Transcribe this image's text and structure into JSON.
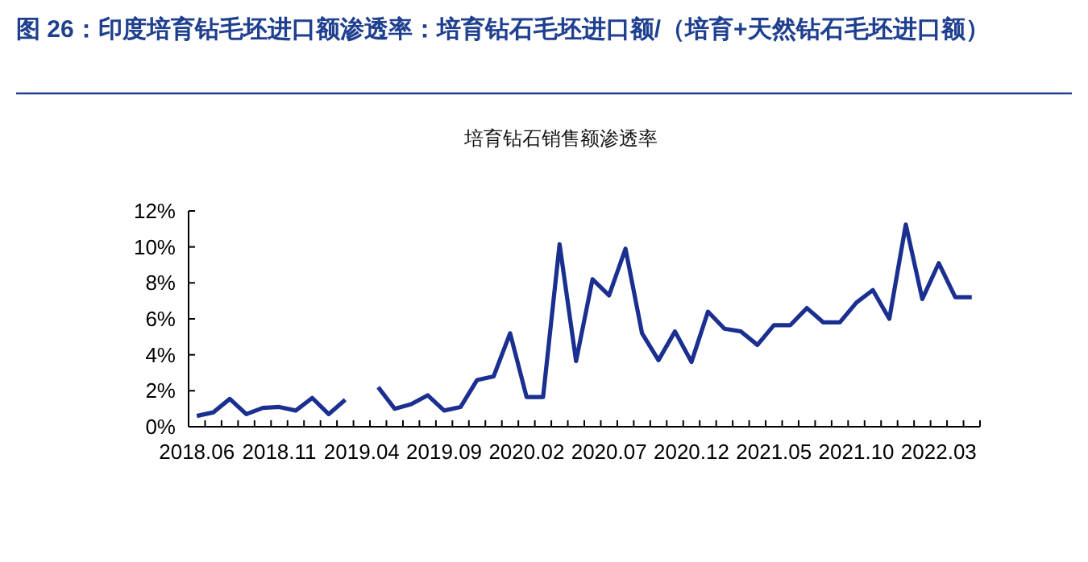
{
  "chart_data": {
    "type": "line",
    "title": "图 26：印度培育钻毛坯进口额渗透率：培育钻石毛坯进口额/（培育+天然钻石毛坯进口额）",
    "subtitle": "培育钻石销售额渗透率",
    "categories": [
      "2018.06",
      null,
      null,
      null,
      null,
      "2018.11",
      null,
      null,
      null,
      null,
      "2019.04",
      null,
      null,
      null,
      null,
      "2019.09",
      null,
      null,
      null,
      null,
      "2020.02",
      null,
      null,
      null,
      null,
      "2020.07",
      null,
      null,
      null,
      null,
      "2020.12",
      null,
      null,
      null,
      null,
      "2021.05",
      null,
      null,
      null,
      null,
      "2021.10",
      null,
      null,
      null,
      null,
      "2022.03",
      null,
      null
    ],
    "values": [
      0.6,
      0.8,
      1.55,
      0.7,
      1.05,
      1.1,
      0.9,
      1.6,
      0.7,
      1.5,
      null,
      2.2,
      1.0,
      1.25,
      1.75,
      0.9,
      1.1,
      2.6,
      2.8,
      5.2,
      1.65,
      1.65,
      10.15,
      3.65,
      8.2,
      7.3,
      9.9,
      5.2,
      3.7,
      5.3,
      3.6,
      6.4,
      5.45,
      5.3,
      4.55,
      5.65,
      5.65,
      6.6,
      5.8,
      5.8,
      6.9,
      7.6,
      6.0,
      11.25,
      7.1,
      9.1,
      7.2,
      7.2
    ],
    "color": "#1a2f8f",
    "ylim": [
      0,
      12
    ],
    "yticks": [
      {
        "value": 0,
        "label": "0%"
      },
      {
        "value": 2,
        "label": "2%"
      },
      {
        "value": 4,
        "label": "4%"
      },
      {
        "value": 6,
        "label": "6%"
      },
      {
        "value": 8,
        "label": "8%"
      },
      {
        "value": 10,
        "label": "10%"
      },
      {
        "value": 12,
        "label": "12%"
      }
    ]
  }
}
